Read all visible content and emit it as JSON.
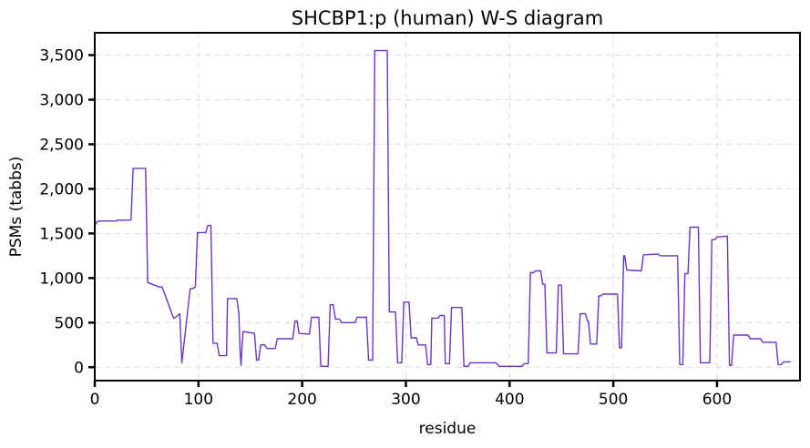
{
  "chart_data": {
    "type": "line",
    "title": "SHCBP1:p (human) W-S diagram",
    "xlabel": "residue",
    "ylabel": "PSMs (tabbs)",
    "xlim": [
      0,
      680
    ],
    "ylim": [
      -150,
      3750
    ],
    "xticks": [
      0,
      100,
      200,
      300,
      400,
      500,
      600
    ],
    "xtick_labels": [
      "0",
      "100",
      "200",
      "300",
      "400",
      "500",
      "600"
    ],
    "yticks": [
      0,
      500,
      1000,
      1500,
      2000,
      2500,
      3000,
      3500
    ],
    "ytick_labels": [
      "0",
      "500",
      "1,000",
      "1,500",
      "2,000",
      "2,500",
      "3,000",
      "3,500"
    ],
    "grid": true,
    "series_color": "#6a35c7",
    "series": [
      {
        "x": [
          1,
          2,
          5,
          21,
          22,
          35,
          37,
          49,
          51,
          62,
          65,
          76,
          78,
          82,
          84,
          92,
          94,
          97,
          99,
          107,
          109,
          112,
          114,
          118,
          120,
          127,
          128,
          137,
          139,
          140,
          141,
          142,
          143,
          154,
          156,
          158,
          160,
          164,
          166,
          174,
          176,
          191,
          193,
          195,
          197,
          207,
          209,
          216,
          218,
          225,
          227,
          230,
          232,
          236,
          238,
          251,
          253,
          262,
          264,
          268,
          270,
          282,
          284,
          290,
          292,
          296,
          298,
          303,
          305,
          310,
          312,
          319,
          321,
          324,
          325,
          331,
          333,
          337,
          338,
          342,
          344,
          354,
          356,
          360,
          362,
          387,
          390,
          412,
          414,
          418,
          420,
          423,
          425,
          430,
          432,
          434,
          436,
          445,
          447,
          450,
          452,
          466,
          468,
          473,
          475,
          476,
          478,
          484,
          486,
          488,
          490,
          504,
          506,
          508,
          510,
          511,
          513,
          527,
          529,
          543,
          545,
          562,
          564,
          567,
          569,
          572,
          574,
          582,
          584,
          593,
          595,
          598,
          600,
          610,
          612,
          614,
          616,
          630,
          632,
          642,
          644,
          657,
          659,
          662,
          664,
          671
        ],
        "y": [
          1600,
          1630,
          1640,
          1640,
          1650,
          1650,
          2230,
          2230,
          950,
          900,
          900,
          550,
          560,
          600,
          50,
          880,
          880,
          900,
          1510,
          1510,
          1590,
          1590,
          270,
          270,
          130,
          130,
          770,
          770,
          600,
          200,
          20,
          230,
          400,
          380,
          80,
          80,
          250,
          250,
          210,
          210,
          320,
          320,
          520,
          520,
          380,
          370,
          560,
          560,
          10,
          10,
          700,
          700,
          540,
          540,
          500,
          500,
          560,
          560,
          80,
          80,
          3550,
          3550,
          620,
          620,
          50,
          50,
          730,
          730,
          330,
          330,
          250,
          250,
          30,
          30,
          550,
          550,
          580,
          580,
          40,
          40,
          670,
          670,
          10,
          10,
          50,
          50,
          10,
          10,
          40,
          40,
          1060,
          1060,
          1080,
          1080,
          930,
          930,
          160,
          160,
          920,
          920,
          150,
          150,
          600,
          600,
          520,
          520,
          260,
          260,
          800,
          800,
          820,
          820,
          220,
          220,
          1250,
          1250,
          1090,
          1080,
          1260,
          1270,
          1250,
          1250,
          30,
          30,
          1050,
          1050,
          1570,
          1570,
          50,
          50,
          1430,
          1430,
          1460,
          1470,
          20,
          20,
          360,
          360,
          320,
          320,
          280,
          280,
          30,
          30,
          60,
          60
        ]
      }
    ]
  }
}
